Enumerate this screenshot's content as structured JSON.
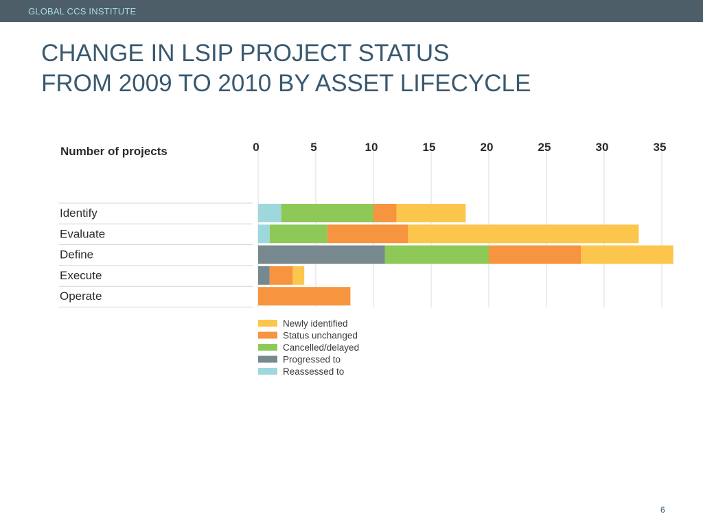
{
  "header": {
    "org": "GLOBAL CCS INSTITUTE"
  },
  "slide": {
    "title_line1": "CHANGE IN LSIP PROJECT STATUS",
    "title_line2": "FROM 2009 TO 2010 BY ASSET LIFECYCLE",
    "page_number": "6"
  },
  "chart_data": {
    "type": "bar",
    "orientation": "horizontal",
    "stacked": true,
    "xlabel": "Number of projects",
    "xlim": [
      0,
      35
    ],
    "xticks": [
      0,
      5,
      10,
      15,
      20,
      25,
      30,
      35
    ],
    "tick_labels": [
      "0",
      "5",
      "10",
      "15",
      "20",
      "25",
      "30",
      "35"
    ],
    "categories": [
      "Identify",
      "Evaluate",
      "Define",
      "Execute",
      "Operate"
    ],
    "series": [
      {
        "name": "Reassessed to",
        "color": "#9fd8dc",
        "values": [
          2,
          1,
          0,
          0,
          0
        ]
      },
      {
        "name": "Progressed to",
        "color": "#78888f",
        "values": [
          0,
          0,
          11,
          1,
          0
        ]
      },
      {
        "name": "Cancelled/delayed",
        "color": "#8ec957",
        "values": [
          8,
          5,
          9,
          0,
          0
        ]
      },
      {
        "name": "Status unchanged",
        "color": "#f6943f",
        "values": [
          2,
          7,
          8,
          2,
          8
        ]
      },
      {
        "name": "Newly identified",
        "color": "#fcc64c",
        "values": [
          6,
          20,
          8,
          1,
          0
        ]
      }
    ],
    "legend_order": [
      "Newly identified",
      "Status unchanged",
      "Cancelled/delayed",
      "Progressed to",
      "Reassessed to"
    ],
    "legend_position": "bottom",
    "grid": true
  }
}
